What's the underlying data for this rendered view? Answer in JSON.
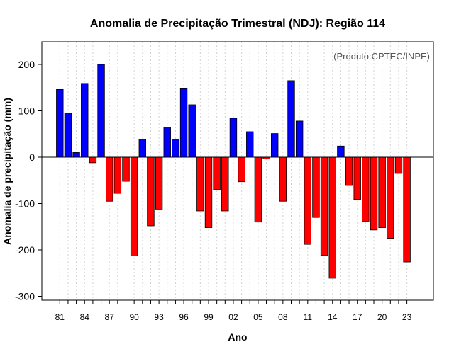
{
  "chart_data": {
    "type": "bar",
    "title": "Anomalia de Precipitação Trimestral (NDJ): Região 114",
    "credit": "(Produto:CPTEC/INPE)",
    "xlabel": "Ano",
    "ylabel": "Anomalia de precipitação (mm)",
    "ylim": [
      -310,
      250
    ],
    "yticks": [
      -300,
      -200,
      -100,
      0,
      100,
      200
    ],
    "xtick_labels": [
      "81",
      "84",
      "87",
      "90",
      "93",
      "96",
      "99",
      "02",
      "05",
      "08",
      "11",
      "14",
      "17",
      "20",
      "23"
    ],
    "categories": [
      "1981",
      "1982",
      "1983",
      "1984",
      "1985",
      "1986",
      "1987",
      "1988",
      "1989",
      "1990",
      "1991",
      "1992",
      "1993",
      "1994",
      "1995",
      "1996",
      "1997",
      "1998",
      "1999",
      "2000",
      "2001",
      "2002",
      "2003",
      "2004",
      "2005",
      "2006",
      "2007",
      "2008",
      "2009",
      "2010",
      "2011",
      "2012",
      "2013",
      "2014",
      "2015",
      "2016",
      "2017",
      "2018",
      "2019",
      "2020",
      "2021",
      "2022",
      "2023"
    ],
    "values": [
      146,
      95,
      10,
      159,
      -12,
      200,
      -95,
      -78,
      -52,
      -213,
      39,
      -148,
      -112,
      65,
      39,
      149,
      113,
      -116,
      -152,
      -70,
      -116,
      84,
      -53,
      55,
      -140,
      -4,
      51,
      -95,
      165,
      78,
      -188,
      -130,
      -212,
      -261,
      24,
      -61,
      -91,
      -138,
      -157,
      -152,
      -175,
      -35,
      -226
    ],
    "colors": {
      "positive": "#0000ff",
      "negative": "#ff0000",
      "grid": "#d3d3d3",
      "border": "#000000"
    }
  }
}
